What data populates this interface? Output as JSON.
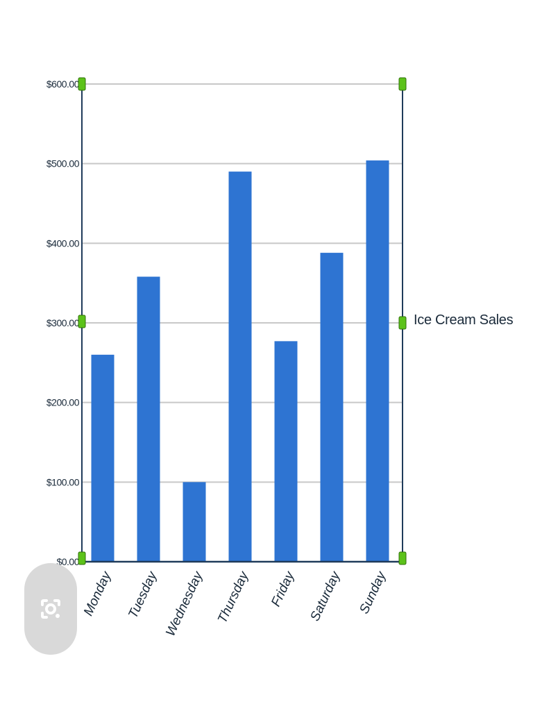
{
  "chart_data": {
    "type": "bar",
    "categories": [
      "Monday",
      "Tuesday",
      "Wednesday",
      "Thursday",
      "Friday",
      "Saturday",
      "Sunday"
    ],
    "series": [
      {
        "name": "Ice Cream Sales",
        "values": [
          260,
          358,
          100,
          490,
          277,
          388,
          504
        ]
      }
    ],
    "yticks": [
      "$0.00",
      "$100.00",
      "$200.00",
      "$300.00",
      "$400.00",
      "$500.00",
      "$600.00"
    ],
    "ylim": [
      0,
      600
    ],
    "grid": true,
    "legend_position": "right",
    "bar_color": "#2e74d2"
  },
  "icons": {
    "lens_button": "lens-icon"
  }
}
